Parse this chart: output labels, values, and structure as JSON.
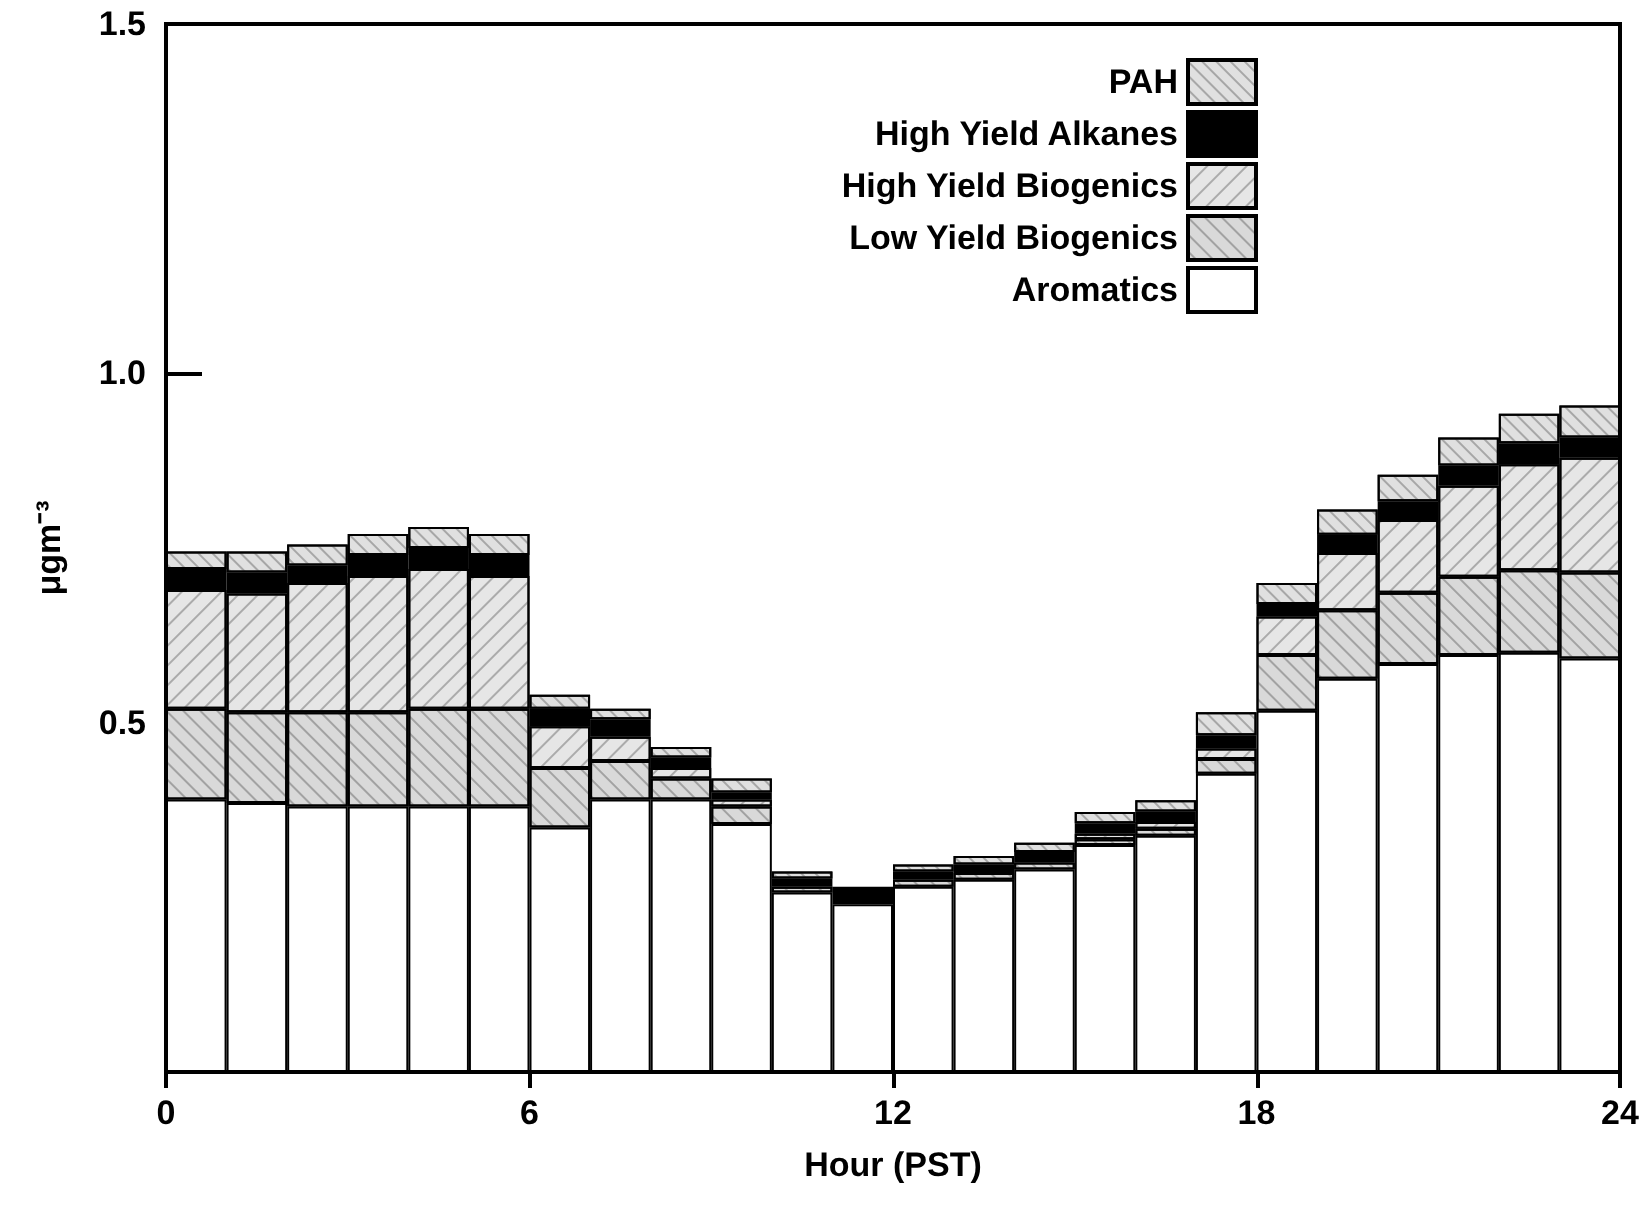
{
  "chart_data": {
    "type": "bar",
    "stacked": true,
    "xlabel": "Hour (PST)",
    "ylabel": "μgm⁻³",
    "x": [
      0.5,
      1.5,
      2.5,
      3.5,
      4.5,
      5.5,
      6.5,
      7.5,
      8.5,
      9.5,
      10.5,
      11.5,
      12.5,
      13.5,
      14.5,
      15.5,
      16.5,
      17.5,
      18.5,
      19.5,
      20.5,
      21.5,
      22.5,
      23.5
    ],
    "xlim": [
      0,
      24
    ],
    "xticks": [
      0,
      6,
      12,
      18,
      24
    ],
    "ylim": [
      0,
      1.5
    ],
    "yticks": [
      {
        "value": 0.5,
        "label": "0.5"
      },
      {
        "value": 1,
        "label": "1.0"
      },
      {
        "value": 1.5,
        "label": "1.5"
      }
    ],
    "grid": false,
    "legend": "top right",
    "series": [
      {
        "name": "Aromatics",
        "color": "#ffffff",
        "values": [
          0.39,
          0.385,
          0.38,
          0.38,
          0.38,
          0.38,
          0.35,
          0.39,
          0.39,
          0.355,
          0.257,
          0.24,
          0.265,
          0.275,
          0.29,
          0.325,
          0.338,
          0.427,
          0.517,
          0.563,
          0.584,
          0.597,
          0.6,
          0.592
        ]
      },
      {
        "name": "Low Yield Biogenics",
        "color": "#d9d9d9",
        "values": [
          0.13,
          0.13,
          0.135,
          0.135,
          0.14,
          0.14,
          0.085,
          0.055,
          0.03,
          0.025,
          0.008,
          null,
          0.01,
          0.01,
          0.01,
          0.008,
          0.01,
          0.021,
          0.08,
          0.098,
          0.102,
          0.112,
          0.118,
          0.123
        ]
      },
      {
        "name": "High Yield Biogenics",
        "color": "#e6e6e6",
        "values": [
          0.17,
          0.17,
          0.185,
          0.195,
          0.2,
          0.19,
          0.06,
          0.035,
          0.015,
          0.01,
          null,
          null,
          null,
          null,
          null,
          0.008,
          0.01,
          0.015,
          0.055,
          0.082,
          0.104,
          0.13,
          0.152,
          0.164
        ]
      },
      {
        "name": "High Yield Alkanes",
        "color": "#000000",
        "values": [
          0.03,
          0.03,
          0.025,
          0.03,
          0.03,
          0.03,
          0.025,
          0.025,
          0.015,
          0.01,
          0.012,
          0.025,
          0.012,
          0.012,
          0.015,
          0.015,
          0.015,
          0.019,
          0.018,
          0.026,
          0.027,
          0.029,
          0.03,
          0.029
        ]
      },
      {
        "name": "PAH",
        "color": "#e0e0e0",
        "values": [
          0.025,
          0.03,
          0.03,
          0.03,
          0.03,
          0.03,
          0.02,
          0.015,
          0.015,
          0.02,
          0.01,
          null,
          0.01,
          0.012,
          0.013,
          0.016,
          0.016,
          0.033,
          0.03,
          0.036,
          0.038,
          0.04,
          0.042,
          0.046
        ]
      }
    ]
  }
}
